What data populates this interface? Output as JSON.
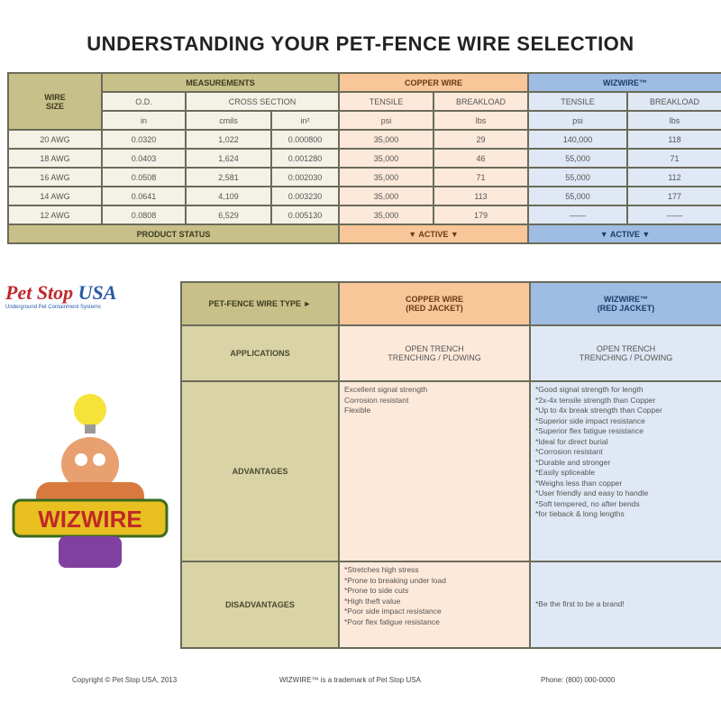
{
  "title": "UNDERSTANDING YOUR PET-FENCE WIRE SELECTION",
  "spec_table": {
    "wire_size_header": [
      "WIRE",
      "SIZE"
    ],
    "measurements_header": "MEASUREMENTS",
    "od_header": "O.D.",
    "cross_section_header": "CROSS SECTION",
    "copper_header": "COPPER WIRE",
    "wizwire_header": "WIZWIRE™",
    "tensile": "TENSILE",
    "breakload": "BREAKLOAD",
    "units": [
      "in",
      "cmils",
      "in²",
      "psi",
      "lbs",
      "psi",
      "lbs"
    ],
    "rows": [
      [
        "20 AWG",
        "0.0320",
        "1,022",
        "0.000800",
        "35,000",
        "29",
        "140,000",
        "118"
      ],
      [
        "18 AWG",
        "0.0403",
        "1,624",
        "0.001280",
        "35,000",
        "46",
        "55,000",
        "71"
      ],
      [
        "16 AWG",
        "0.0508",
        "2,581",
        "0.002030",
        "35,000",
        "71",
        "55,000",
        "112"
      ],
      [
        "14 AWG",
        "0.0641",
        "4,109",
        "0.003230",
        "35,000",
        "113",
        "55,000",
        "177"
      ],
      [
        "12 AWG",
        "0.0808",
        "6,529",
        "0.005130",
        "35,000",
        "179",
        "——",
        "——"
      ]
    ],
    "status_label": "PRODUCT STATUS",
    "copper_status": "▼ ACTIVE ▼",
    "wizwire_status": "▼ ACTIVE ▼"
  },
  "logo": {
    "text1": "Pet Stop",
    "text2": "USA",
    "tagline": "Underground Pet Containment Systems"
  },
  "compare_table": {
    "type_header": "PET-FENCE WIRE TYPE ►",
    "copper_header": "COPPER WIRE",
    "copper_sub": "(RED JACKET)",
    "wizwire_header": "WIZWIRE™",
    "wizwire_sub": "(RED JACKET)",
    "applications_label": "APPLICATIONS",
    "copper_app": [
      "OPEN TRENCH",
      "TRENCHING / PLOWING"
    ],
    "wizwire_app": [
      "OPEN TRENCH",
      "TRENCHING / PLOWING"
    ],
    "advantages_label": "ADVANTAGES",
    "copper_adv": [
      "Excellent signal strength",
      "Corrosion resistant",
      "Flexible"
    ],
    "wizwire_adv": [
      "*Good signal strength for length",
      "*2x-4x tensile strength than Copper",
      "*Up to 4x break strength than Copper",
      "*Superior side impact resistance",
      "*Superior flex fatigue resistance",
      "*Ideal for direct burial",
      "*Corrosion resistant",
      "*Durable and stronger",
      "*Easily spliceable",
      "*Weighs less than copper",
      "*User friendly and easy to handle",
      "*Soft tempered, no after bends",
      "*for tieback & long lengths"
    ],
    "disadvantages_label": "DISADVANTAGES",
    "copper_dis": [
      "*Stretches high stress",
      "*Prone to breaking under load",
      "*Prone to side cuts",
      "*High theft value",
      "*Poor side impact resistance",
      "*Poor flex fatigue resistance"
    ],
    "wizwire_dis": [
      "*Be the first to be a brand!"
    ]
  },
  "footer": {
    "copyright": "Copyright © Pet Stop USA, 2013",
    "trademark": "WIZWIRE™ is a trademark of Pet Stop USA",
    "phone": "Phone: (800) 000-0000"
  }
}
